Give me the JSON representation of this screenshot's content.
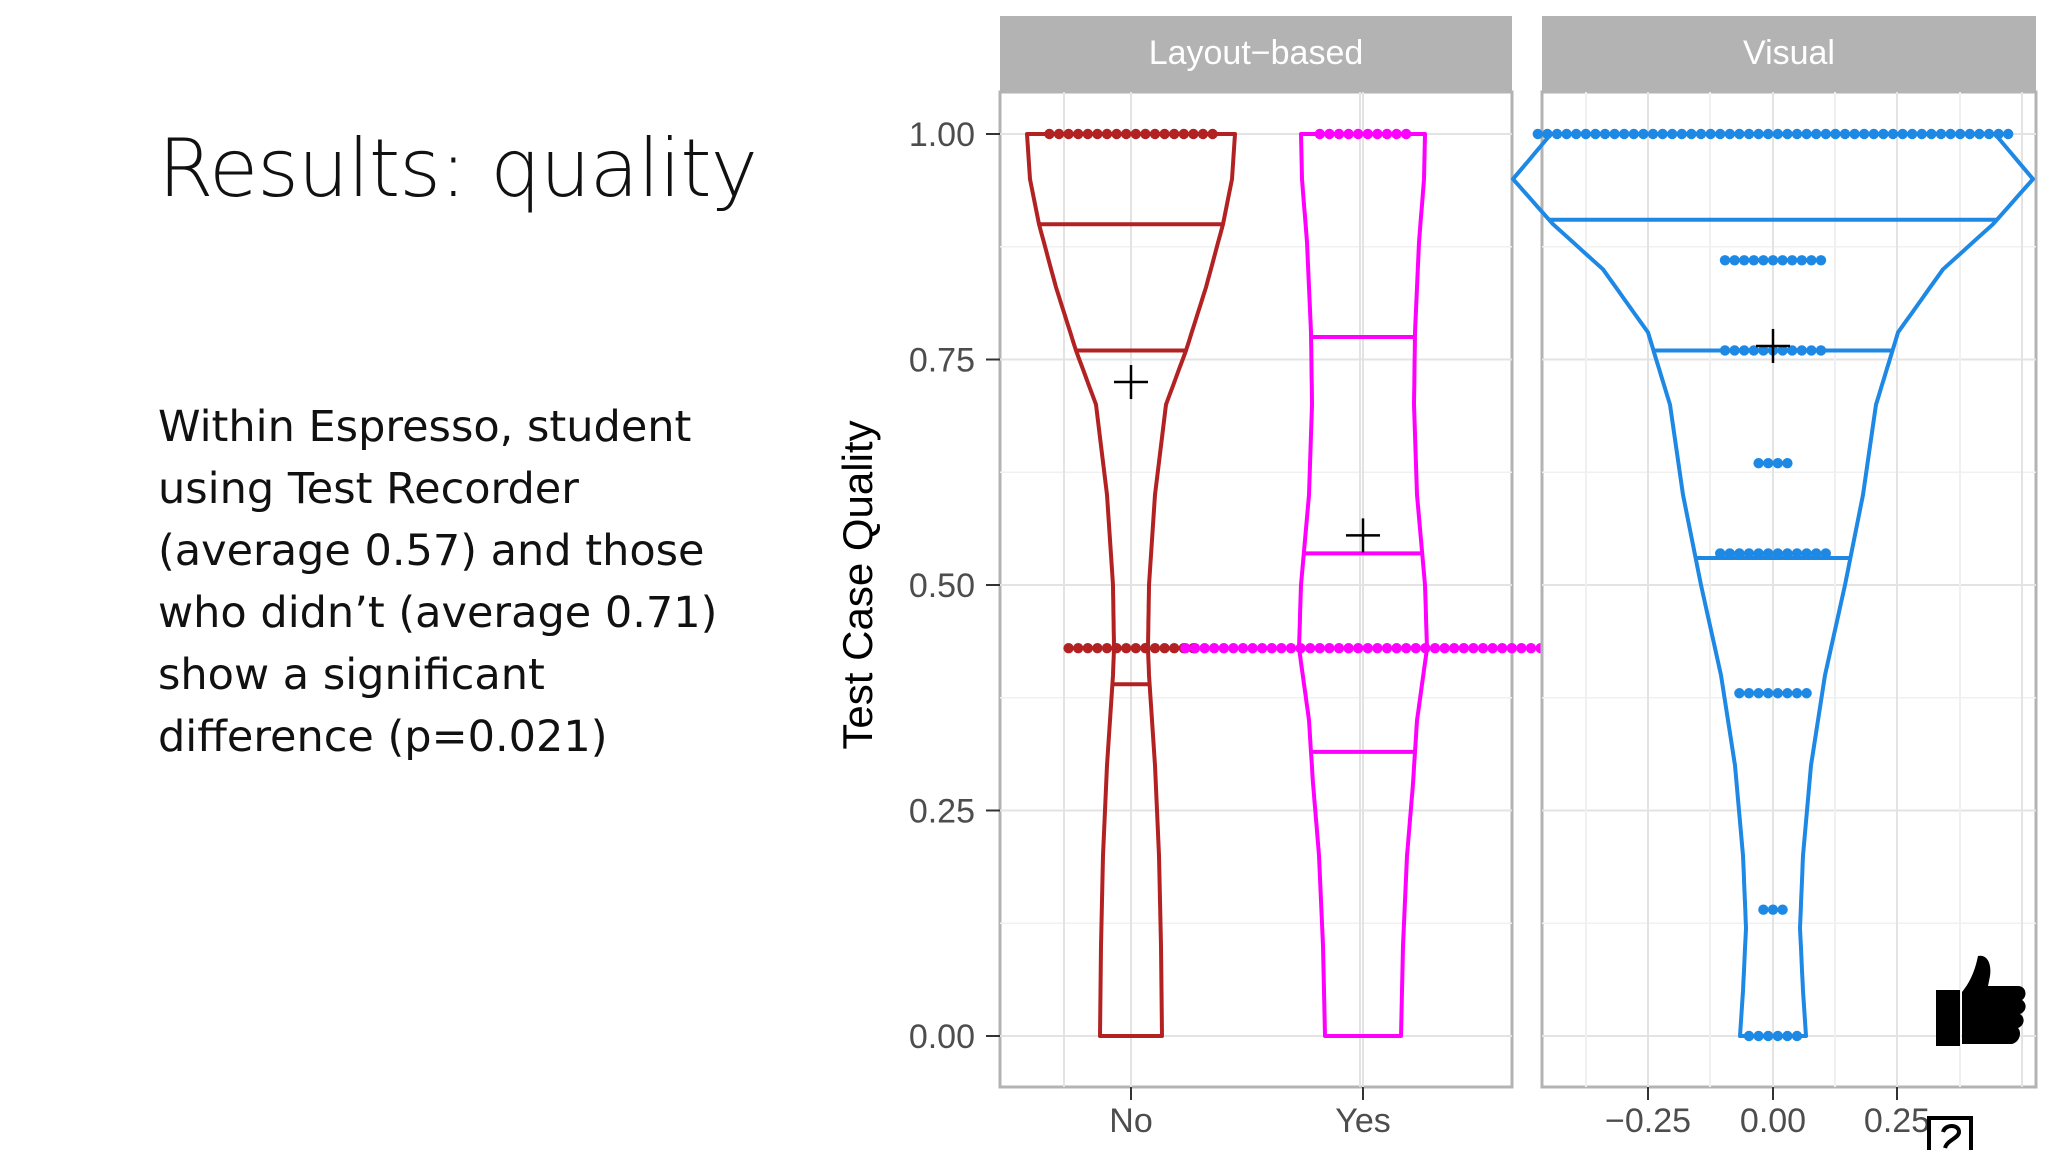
{
  "slide": {
    "title": "Results: quality",
    "body_lines": [
      "Within Espresso, student",
      "using Test Recorder",
      "(average 0.57) and those",
      "who didn’t (average 0.71)",
      "show a significant",
      "difference (p=0.021)"
    ]
  },
  "chart_data": {
    "type": "violin",
    "ylabel": "Test Case Quality",
    "ylim": [
      0,
      1
    ],
    "y_ticks": [
      "0.00",
      "0.25",
      "0.50",
      "0.75",
      "1.00"
    ],
    "grid": true,
    "panels": [
      {
        "strip_label": "Layout−based",
        "x_tick_labels": [
          "No",
          "Yes"
        ],
        "groups": [
          {
            "category": "No",
            "color": "#b22222",
            "quantiles": [
              0.39,
              0.76,
              0.9
            ],
            "mean": 0.725,
            "y_min": 0.0,
            "y_max": 1.0,
            "dot_rows": [
              {
                "y": 1.0,
                "count": 18
              },
              {
                "y": 0.43,
                "count": 14
              }
            ]
          },
          {
            "category": "Yes",
            "color": "#ff00ff",
            "quantiles": [
              0.315,
              0.535,
              0.775
            ],
            "mean": 0.555,
            "y_min": 0.0,
            "y_max": 1.0,
            "dot_rows": [
              {
                "y": 1.0,
                "count": 10
              },
              {
                "y": 0.43,
                "count": 38
              }
            ]
          }
        ]
      },
      {
        "strip_label": "Visual",
        "x_tick_labels": [
          "−0.25",
          "0.00",
          "0.25"
        ],
        "groups": [
          {
            "category": "Visual",
            "color": "#1e88e5",
            "quantiles": [
              0.53,
              0.76,
              0.905
            ],
            "mean": 0.765,
            "y_min": 0.0,
            "y_max": 1.0,
            "dot_rows": [
              {
                "y": 1.0,
                "count": 50
              },
              {
                "y": 0.86,
                "count": 11
              },
              {
                "y": 0.76,
                "count": 11
              },
              {
                "y": 0.635,
                "count": 4
              },
              {
                "y": 0.535,
                "count": 12
              },
              {
                "y": 0.38,
                "count": 8
              },
              {
                "y": 0.14,
                "count": 3
              },
              {
                "y": 0.0,
                "count": 6
              }
            ]
          }
        ]
      }
    ]
  },
  "icons": {
    "thumb": "thumbs-up-icon",
    "corner": "window-corner-icon"
  }
}
